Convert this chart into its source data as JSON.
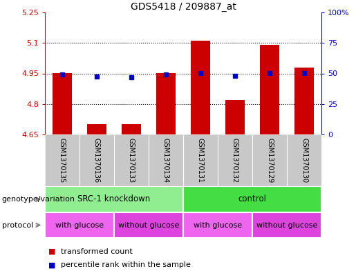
{
  "title": "GDS5418 / 209887_at",
  "samples": [
    "GSM1370135",
    "GSM1370136",
    "GSM1370133",
    "GSM1370134",
    "GSM1370131",
    "GSM1370132",
    "GSM1370129",
    "GSM1370130"
  ],
  "bar_values": [
    4.95,
    4.7,
    4.7,
    4.95,
    5.11,
    4.82,
    5.09,
    4.98
  ],
  "dot_values": [
    4.945,
    4.935,
    4.933,
    4.946,
    4.953,
    4.937,
    4.952,
    4.951
  ],
  "ylim": [
    4.65,
    5.25
  ],
  "yticks_left": [
    4.65,
    4.8,
    4.95,
    5.1,
    5.25
  ],
  "yticks_right_vals": [
    0,
    25,
    50,
    75,
    100
  ],
  "yticks_right_labels": [
    "0",
    "25",
    "50",
    "75",
    "100%"
  ],
  "bar_color": "#cc0000",
  "dot_color": "#0000cc",
  "bar_width": 0.55,
  "genotype_groups": [
    {
      "label": "SRC-1 knockdown",
      "start": 0,
      "end": 4,
      "color": "#90ee90"
    },
    {
      "label": "control",
      "start": 4,
      "end": 8,
      "color": "#44dd44"
    }
  ],
  "protocol_groups": [
    {
      "label": "with glucose",
      "start": 0,
      "end": 2,
      "color": "#ee66ee"
    },
    {
      "label": "without glucose",
      "start": 2,
      "end": 4,
      "color": "#dd44dd"
    },
    {
      "label": "with glucose",
      "start": 4,
      "end": 6,
      "color": "#ee66ee"
    },
    {
      "label": "without glucose",
      "start": 6,
      "end": 8,
      "color": "#dd44dd"
    }
  ],
  "legend_items": [
    {
      "label": "transformed count",
      "color": "#cc0000"
    },
    {
      "label": "percentile rank within the sample",
      "color": "#0000cc"
    }
  ],
  "plot_bg_color": "#ffffff",
  "label_bg_color": "#c8c8c8",
  "dotted_lines": [
    4.8,
    4.95,
    5.1
  ],
  "left_axis_color": "#cc0000",
  "right_axis_color": "#0000cc",
  "geno_label": "genotype/variation",
  "proto_label": "protocol"
}
